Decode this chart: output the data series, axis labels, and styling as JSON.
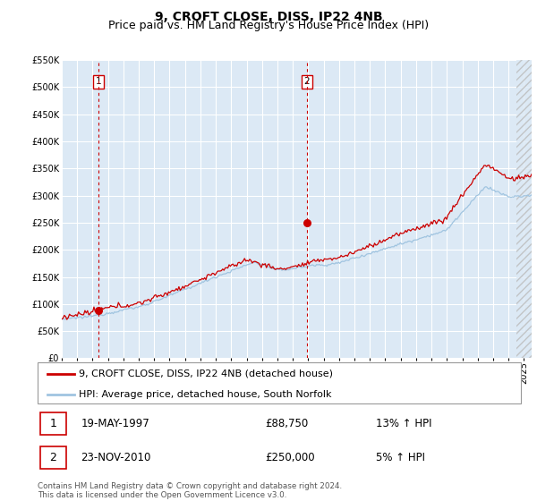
{
  "title": "9, CROFT CLOSE, DISS, IP22 4NB",
  "subtitle": "Price paid vs. HM Land Registry's House Price Index (HPI)",
  "ylim": [
    0,
    550000
  ],
  "yticks": [
    0,
    50000,
    100000,
    150000,
    200000,
    250000,
    300000,
    350000,
    400000,
    450000,
    500000,
    550000
  ],
  "xlim_start": 1995.0,
  "xlim_end": 2025.5,
  "hatch_start": 2024.5,
  "bg_color": "#dce9f5",
  "grid_color": "#ffffff",
  "sale1_date": 1997.38,
  "sale1_price": 88750,
  "sale1_label": "1",
  "sale2_date": 2010.9,
  "sale2_price": 250000,
  "sale2_label": "2",
  "legend_line1": "9, CROFT CLOSE, DISS, IP22 4NB (detached house)",
  "legend_line2": "HPI: Average price, detached house, South Norfolk",
  "table_row1": [
    "1",
    "19-MAY-1997",
    "£88,750",
    "13% ↑ HPI"
  ],
  "table_row2": [
    "2",
    "23-NOV-2010",
    "£250,000",
    "5% ↑ HPI"
  ],
  "footer": "Contains HM Land Registry data © Crown copyright and database right 2024.\nThis data is licensed under the Open Government Licence v3.0.",
  "hpi_color": "#a0c4e0",
  "price_color": "#cc0000",
  "dashed_color": "#cc0000",
  "title_fontsize": 10,
  "subtitle_fontsize": 9,
  "tick_fontsize": 7,
  "legend_fontsize": 8
}
